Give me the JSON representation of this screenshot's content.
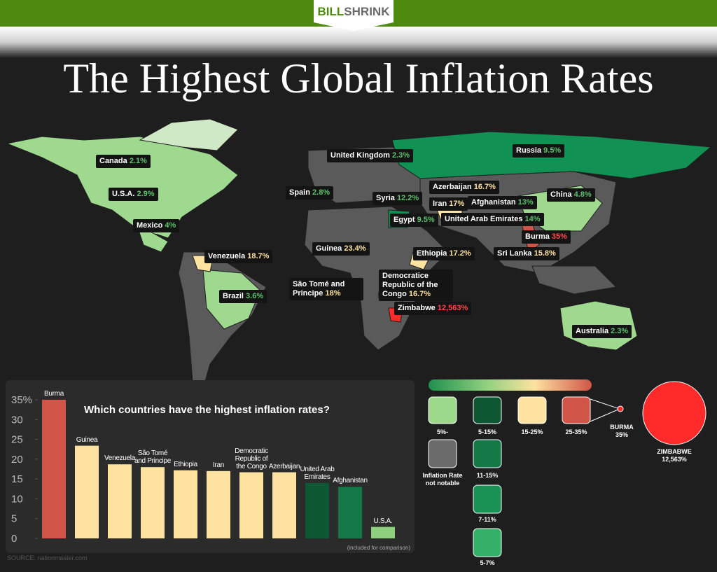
{
  "header": {
    "logo_bold": "BILL",
    "logo_light": "SHRINK",
    "title": "The Highest Global Inflation Rates"
  },
  "map": {
    "labels": [
      {
        "country": "Canada",
        "rate": "2.1%"
      },
      {
        "country": "U.S.A.",
        "rate": "2.9%"
      },
      {
        "country": "Mexico",
        "rate": "4%"
      },
      {
        "country": "Venezuela",
        "rate": "18.7%"
      },
      {
        "country": "Brazil",
        "rate": "3.6%"
      },
      {
        "country": "United Kingdom",
        "rate": "2.3%"
      },
      {
        "country": "Spain",
        "rate": "2.8%"
      },
      {
        "country": "Syria",
        "rate": "12.2%"
      },
      {
        "country": "Egypt",
        "rate": "9.5%"
      },
      {
        "country": "Azerbaijan",
        "rate": "16.7%"
      },
      {
        "country": "Iran",
        "rate": "17%"
      },
      {
        "country": "Afghanistan",
        "rate": "13%"
      },
      {
        "country": "United Arab Emirates",
        "rate": "14%"
      },
      {
        "country": "Russia",
        "rate": "9.5%"
      },
      {
        "country": "China",
        "rate": "4.8%"
      },
      {
        "country": "Burma",
        "rate": "35%"
      },
      {
        "country": "Sri Lanka",
        "rate": "15.8%"
      },
      {
        "country": "Guinea",
        "rate": "23.4%"
      },
      {
        "country": "Ethiopia",
        "rate": "17.2%"
      },
      {
        "country": "Democratice Republic of the Congo",
        "rate": "16.7%"
      },
      {
        "country": "São Tomé and Principe",
        "rate": "18%"
      },
      {
        "country": "Zimbabwe",
        "rate": "12,563%"
      },
      {
        "country": "Australia",
        "rate": "2.3%"
      }
    ]
  },
  "chart_data": {
    "type": "bar",
    "title": "Which countries have the highest inflation rates?",
    "categories": [
      "Burma",
      "Guinea",
      "Venezuela",
      "São Tomé and Principe",
      "Ethiopia",
      "Iran",
      "Democratic Republic of the Congo",
      "Azerbaijan",
      "United Arab Emirates",
      "Afghanistan",
      "U.S.A."
    ],
    "values": [
      35,
      23.4,
      18.7,
      18,
      17.2,
      17,
      16.7,
      16.7,
      14,
      13,
      2.9
    ],
    "colors": [
      "#d05548",
      "#fde2a0",
      "#fde2a0",
      "#fde2a0",
      "#fde2a0",
      "#fde2a0",
      "#fde2a0",
      "#fde2a0",
      "#0d5733",
      "#137a47",
      "#8fd07f"
    ],
    "ylim": [
      0,
      35
    ],
    "yticks": [
      0,
      5,
      10,
      15,
      20,
      25,
      30,
      {
        "value": 35,
        "label": "35%"
      }
    ],
    "note": "(included for comparison)"
  },
  "legend": {
    "main": [
      "5%-",
      "5-15%",
      "15-25%",
      "25-35%"
    ],
    "not_notable": "Inflation Rate not notable",
    "sub": [
      "11-15%",
      "7-11%",
      "5-7%"
    ],
    "burma_name": "BURMA",
    "burma_rate": "35%",
    "zimbabwe_name": "ZIMBABWE",
    "zimbabwe_rate": "12,563%"
  },
  "source": "SOURCE: nationmaster.com"
}
